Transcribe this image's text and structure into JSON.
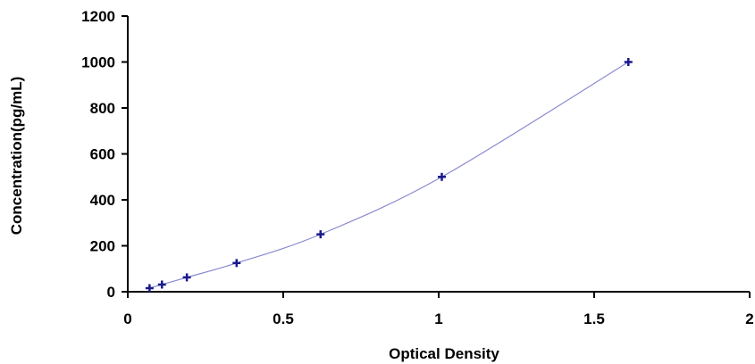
{
  "chart_data": {
    "type": "scatter",
    "title": "",
    "xlabel": "Optical Density",
    "ylabel": "Concentration(pg/mL)",
    "xlim": [
      0,
      2
    ],
    "ylim": [
      0,
      1200
    ],
    "x_ticks": [
      {
        "value": 0,
        "label": "0"
      },
      {
        "value": 0.5,
        "label": "0.5"
      },
      {
        "value": 1,
        "label": "1"
      },
      {
        "value": 1.5,
        "label": "1.5"
      },
      {
        "value": 2,
        "label": "2"
      }
    ],
    "y_ticks": [
      {
        "value": 0,
        "label": "0"
      },
      {
        "value": 200,
        "label": "200"
      },
      {
        "value": 400,
        "label": "400"
      },
      {
        "value": 600,
        "label": "600"
      },
      {
        "value": 800,
        "label": "800"
      },
      {
        "value": 1000,
        "label": "1000"
      },
      {
        "value": 1200,
        "label": "1200"
      }
    ],
    "grid": false,
    "legend": "none",
    "series": [
      {
        "points": [
          {
            "x": 0.07,
            "y": 15.6
          },
          {
            "x": 0.11,
            "y": 31.2
          },
          {
            "x": 0.19,
            "y": 62.5
          },
          {
            "x": 0.35,
            "y": 125
          },
          {
            "x": 0.62,
            "y": 250
          },
          {
            "x": 1.01,
            "y": 500
          },
          {
            "x": 1.61,
            "y": 1000
          }
        ],
        "color": "#1a1a8c",
        "line_color": "#8a8ad0",
        "marker": "plus",
        "smooth_line": true
      }
    ]
  }
}
